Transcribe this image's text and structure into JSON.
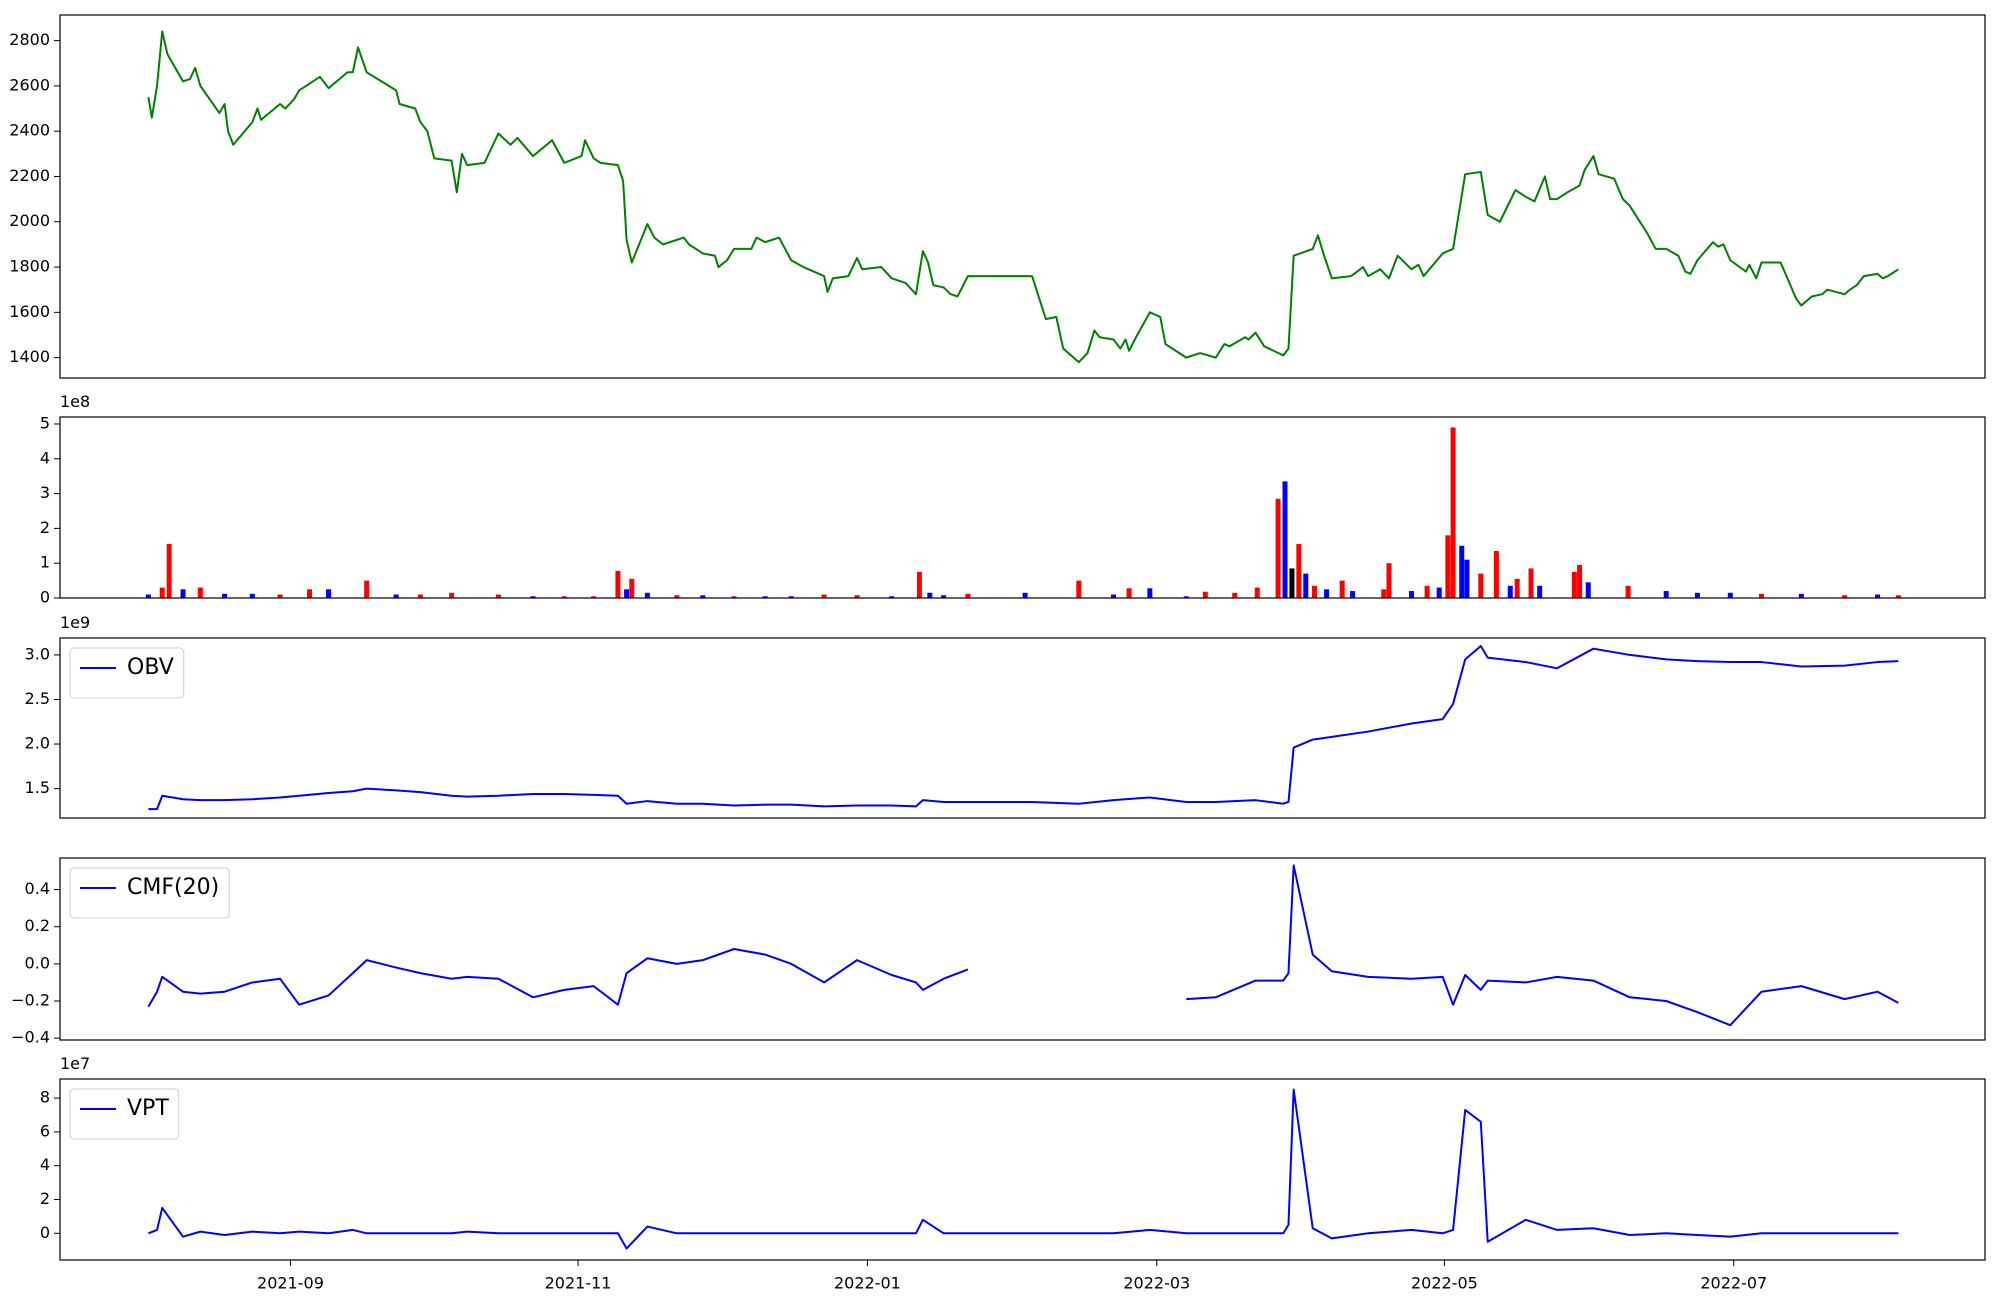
{
  "chart_data": [
    {
      "type": "line",
      "color": "#008000",
      "xlim": [
        2021.534,
        2022.645
      ],
      "ylim": [
        1310,
        2913
      ],
      "yticks": [
        1400,
        1600,
        1800,
        2000,
        2200,
        2400,
        2600,
        2800
      ],
      "x": [
        2021.585,
        2021.587,
        2021.59,
        2021.593,
        2021.596,
        2021.605,
        2021.609,
        2021.612,
        2021.615,
        2021.626,
        2021.629,
        2021.631,
        2021.634,
        2021.645,
        2021.648,
        2021.65,
        2021.661,
        2021.664,
        2021.669,
        2021.672,
        2021.684,
        2021.689,
        2021.7,
        2021.703,
        2021.706,
        2021.711,
        2021.728,
        2021.73,
        2021.739,
        2021.742,
        2021.746,
        2021.75,
        2021.76,
        2021.763,
        2021.766,
        2021.769,
        2021.779,
        2021.787,
        2021.794,
        2021.798,
        2021.807,
        2021.818,
        2021.825,
        2021.835,
        2021.837,
        2021.842,
        2021.846,
        2021.856,
        2021.859,
        2021.861,
        2021.864,
        2021.873,
        2021.877,
        2021.882,
        2021.89,
        2021.894,
        2021.897,
        2021.905,
        2021.912,
        2021.914,
        2021.919,
        2021.923,
        2021.933,
        2021.936,
        2021.941,
        2021.949,
        2021.956,
        2021.963,
        2021.975,
        2021.977,
        2021.98,
        2021.989,
        2021.994,
        2021.997,
        2022.008,
        2022.014,
        2022.022,
        2022.028,
        2022.032,
        2022.035,
        2022.038,
        2022.044,
        2022.048,
        2022.052,
        2022.058,
        2022.095,
        2022.103,
        2022.109,
        2022.113,
        2022.122,
        2022.127,
        2022.131,
        2022.134,
        2022.142,
        2022.146,
        2022.149,
        2022.151,
        2022.155,
        2022.163,
        2022.169,
        2022.172,
        2022.184,
        2022.192,
        2022.201,
        2022.206,
        2022.209,
        2022.218,
        2022.22,
        2022.224,
        2022.229,
        2022.24,
        2022.243,
        2022.246,
        2022.257,
        2022.26,
        2022.264,
        2022.268,
        2022.279,
        2022.281,
        2022.286,
        2022.289,
        2022.296,
        2022.301,
        2022.306,
        2022.314,
        2022.318,
        2022.321,
        2022.332,
        2022.338,
        2022.345,
        2022.354,
        2022.358,
        2022.365,
        2022.374,
        2022.38,
        2022.385,
        2022.391,
        2022.394,
        2022.398,
        2022.404,
        2022.411,
        2022.414,
        2022.419,
        2022.422,
        2022.431,
        2022.436,
        2022.44,
        2022.45,
        2022.455,
        2022.461,
        2022.468,
        2022.472,
        2022.475,
        2022.479,
        2022.488,
        2022.491,
        2022.494,
        2022.498,
        2022.507,
        2022.509,
        2022.513,
        2022.516,
        2022.527,
        2022.531,
        2022.536,
        2022.539,
        2022.545,
        2022.551,
        2022.554,
        2022.564,
        2022.567,
        2022.571,
        2022.575,
        2022.583,
        2022.586,
        2022.589,
        2022.595
      ],
      "values": [
        2550,
        2460,
        2600,
        2840,
        2740,
        2620,
        2630,
        2680,
        2600,
        2480,
        2520,
        2400,
        2340,
        2440,
        2500,
        2450,
        2520,
        2500,
        2540,
        2580,
        2640,
        2590,
        2660,
        2660,
        2770,
        2660,
        2580,
        2520,
        2500,
        2440,
        2400,
        2280,
        2270,
        2130,
        2300,
        2250,
        2260,
        2390,
        2340,
        2370,
        2290,
        2360,
        2260,
        2290,
        2360,
        2280,
        2260,
        2250,
        2180,
        1920,
        1820,
        1990,
        1930,
        1900,
        1920,
        1930,
        1900,
        1860,
        1850,
        1800,
        1830,
        1880,
        1880,
        1930,
        1910,
        1930,
        1830,
        1800,
        1760,
        1690,
        1750,
        1760,
        1840,
        1790,
        1800,
        1750,
        1730,
        1680,
        1870,
        1820,
        1720,
        1710,
        1680,
        1670,
        1760,
        1760,
        1570,
        1580,
        1440,
        1380,
        1420,
        1520,
        1490,
        1480,
        1440,
        1480,
        1430,
        1490,
        1600,
        1580,
        1460,
        1400,
        1420,
        1400,
        1460,
        1450,
        1490,
        1480,
        1510,
        1450,
        1410,
        1440,
        1850,
        1880,
        1940,
        1840,
        1750,
        1760,
        1770,
        1800,
        1760,
        1790,
        1750,
        1850,
        1790,
        1810,
        1760,
        1860,
        1880,
        2210,
        2220,
        2030,
        2000,
        2140,
        2110,
        2090,
        2200,
        2100,
        2100,
        2130,
        2160,
        2230,
        2290,
        2210,
        2190,
        2100,
        2070,
        1950,
        1880,
        1880,
        1850,
        1780,
        1770,
        1830,
        1910,
        1890,
        1900,
        1830,
        1780,
        1810,
        1750,
        1820,
        1820,
        1750,
        1660,
        1630,
        1670,
        1680,
        1700,
        1680,
        1700,
        1720,
        1760,
        1770,
        1750,
        1760,
        1790
      ]
    },
    {
      "type": "bar",
      "offset_text": "1e8",
      "xlim": [
        2021.534,
        2022.645
      ],
      "ylim": [
        0,
        5.2
      ],
      "yticks": [
        0,
        1,
        2,
        3,
        4,
        5
      ],
      "x": [
        2021.585,
        2021.593,
        2021.597,
        2021.605,
        2021.615,
        2021.629,
        2021.645,
        2021.661,
        2021.678,
        2021.689,
        2021.711,
        2021.728,
        2021.742,
        2021.76,
        2021.787,
        2021.807,
        2021.825,
        2021.842,
        2021.856,
        2021.861,
        2021.864,
        2021.873,
        2021.89,
        2021.905,
        2021.923,
        2021.941,
        2021.956,
        2021.975,
        2021.994,
        2022.014,
        2022.03,
        2022.036,
        2022.044,
        2022.058,
        2022.091,
        2022.122,
        2022.142,
        2022.151,
        2022.163,
        2022.184,
        2022.195,
        2022.212,
        2022.225,
        2022.237,
        2022.241,
        2022.245,
        2022.249,
        2022.253,
        2022.258,
        2022.265,
        2022.274,
        2022.28,
        2022.298,
        2022.301,
        2022.314,
        2022.323,
        2022.33,
        2022.335,
        2022.338,
        2022.343,
        2022.346,
        2022.354,
        2022.363,
        2022.371,
        2022.375,
        2022.383,
        2022.388,
        2022.408,
        2022.411,
        2022.416,
        2022.439,
        2022.461,
        2022.479,
        2022.498,
        2022.516,
        2022.539,
        2022.564,
        2022.583,
        2022.595
      ],
      "values": [
        0.1,
        0.3,
        1.55,
        0.25,
        0.3,
        0.12,
        0.12,
        0.1,
        0.25,
        0.25,
        0.5,
        0.1,
        0.1,
        0.15,
        0.1,
        0.05,
        0.05,
        0.05,
        0.78,
        0.25,
        0.55,
        0.15,
        0.08,
        0.08,
        0.05,
        0.05,
        0.05,
        0.1,
        0.08,
        0.05,
        0.75,
        0.15,
        0.08,
        0.12,
        0.15,
        0.5,
        0.1,
        0.28,
        0.28,
        0.05,
        0.18,
        0.15,
        0.3,
        2.85,
        3.35,
        0.85,
        1.55,
        0.7,
        0.35,
        0.25,
        0.5,
        0.2,
        0.25,
        1.0,
        0.2,
        0.35,
        0.3,
        1.8,
        4.9,
        1.5,
        1.1,
        0.7,
        1.35,
        0.35,
        0.55,
        0.85,
        0.35,
        0.75,
        0.95,
        0.45,
        0.35,
        0.2,
        0.15,
        0.15,
        0.12,
        0.12,
        0.08,
        0.1,
        0.08
      ],
      "colors": [
        "#0000ff",
        "#ff0000",
        "#ff0000",
        "#0000ff",
        "#ff0000",
        "#0000ff",
        "#0000ff",
        "#ff0000",
        "#ff0000",
        "#0000ff",
        "#ff0000",
        "#0000ff",
        "#ff0000",
        "#ff0000",
        "#ff0000",
        "#0000ff",
        "#ff0000",
        "#ff0000",
        "#ff0000",
        "#0000ff",
        "#ff0000",
        "#0000ff",
        "#ff0000",
        "#0000ff",
        "#ff0000",
        "#0000ff",
        "#0000ff",
        "#ff0000",
        "#ff0000",
        "#0000ff",
        "#ff0000",
        "#0000ff",
        "#0000ff",
        "#ff0000",
        "#0000ff",
        "#ff0000",
        "#0000ff",
        "#ff0000",
        "#0000ff",
        "#0000ff",
        "#ff0000",
        "#ff0000",
        "#ff0000",
        "#ff0000",
        "#0000ff",
        "#000000",
        "#ff0000",
        "#0000ff",
        "#ff0000",
        "#0000ff",
        "#ff0000",
        "#0000ff",
        "#ff0000",
        "#ff0000",
        "#0000ff",
        "#ff0000",
        "#0000ff",
        "#ff0000",
        "#ff0000",
        "#0000ff",
        "#0000ff",
        "#ff0000",
        "#ff0000",
        "#0000ff",
        "#ff0000",
        "#ff0000",
        "#0000ff",
        "#ff0000",
        "#ff0000",
        "#0000ff",
        "#ff0000",
        "#0000ff",
        "#0000ff",
        "#0000ff",
        "#ff0000",
        "#0000ff",
        "#ff0000",
        "#0000ff",
        "#ff0000"
      ]
    },
    {
      "type": "line",
      "offset_text": "1e9",
      "legend": "upper left",
      "xlim": [
        2021.534,
        2022.645
      ],
      "ylim": [
        1.17,
        3.19
      ],
      "yticks": [
        1.5,
        {
          "value": 2,
          "label": "2.0"
        },
        2.5,
        {
          "value": 3,
          "label": "3.0"
        }
      ],
      "x": [
        2021.585,
        2021.59,
        2021.593,
        2021.605,
        2021.615,
        2021.629,
        2021.645,
        2021.661,
        2021.672,
        2021.689,
        2021.703,
        2021.711,
        2021.728,
        2021.742,
        2021.76,
        2021.769,
        2021.787,
        2021.807,
        2021.825,
        2021.842,
        2021.856,
        2021.861,
        2021.873,
        2021.89,
        2021.905,
        2021.923,
        2021.941,
        2021.956,
        2021.975,
        2021.994,
        2022.014,
        2022.028,
        2022.032,
        2022.044,
        2022.058,
        2022.095,
        2022.122,
        2022.142,
        2022.163,
        2022.184,
        2022.201,
        2022.224,
        2022.24,
        2022.243,
        2022.246,
        2022.257,
        2022.268,
        2022.289,
        2022.314,
        2022.332,
        2022.338,
        2022.345,
        2022.354,
        2022.358,
        2022.38,
        2022.398,
        2022.419,
        2022.44,
        2022.461,
        2022.479,
        2022.498,
        2022.516,
        2022.539,
        2022.564,
        2022.583,
        2022.595
      ],
      "series": [
        {
          "name": "OBV",
          "color": "#0000ff",
          "values": [
            1.27,
            1.27,
            1.42,
            1.38,
            1.37,
            1.37,
            1.38,
            1.4,
            1.42,
            1.45,
            1.47,
            1.5,
            1.48,
            1.46,
            1.42,
            1.41,
            1.42,
            1.44,
            1.44,
            1.43,
            1.42,
            1.33,
            1.36,
            1.33,
            1.33,
            1.31,
            1.32,
            1.32,
            1.3,
            1.31,
            1.31,
            1.3,
            1.37,
            1.35,
            1.35,
            1.35,
            1.33,
            1.37,
            1.4,
            1.35,
            1.35,
            1.37,
            1.33,
            1.35,
            1.96,
            2.05,
            2.08,
            2.14,
            2.23,
            2.28,
            2.45,
            2.95,
            3.1,
            2.97,
            2.92,
            2.85,
            3.07,
            3.0,
            2.95,
            2.93,
            2.92,
            2.92,
            2.87,
            2.88,
            2.92,
            2.93
          ]
        }
      ]
    },
    {
      "type": "line",
      "legend": "upper left",
      "xlim": [
        2021.534,
        2022.645
      ],
      "ylim": [
        -0.41,
        0.57
      ],
      "yticks": [
        {
          "value": -0.4,
          "label": "−0.4"
        },
        {
          "value": -0.2,
          "label": "−0.2"
        },
        {
          "value": 0,
          "label": "0.0"
        },
        0.2,
        0.4
      ],
      "x": [
        2021.585,
        2021.59,
        2021.593,
        2021.605,
        2021.615,
        2021.629,
        2021.645,
        2021.661,
        2021.672,
        2021.689,
        2021.703,
        2021.711,
        2021.728,
        2021.742,
        2021.76,
        2021.769,
        2021.787,
        2021.807,
        2021.825,
        2021.842,
        2021.856,
        2021.861,
        2021.873,
        2021.89,
        2021.905,
        2021.923,
        2021.941,
        2021.956,
        2021.975,
        2021.994,
        2022.014,
        2022.028,
        2022.032,
        2022.044,
        2022.058,
        2022.095,
        2022.122,
        2022.142,
        2022.163,
        2022.184,
        2022.201,
        2022.224,
        2022.24,
        2022.243,
        2022.246,
        2022.257,
        2022.268,
        2022.289,
        2022.314,
        2022.332,
        2022.338,
        2022.345,
        2022.354,
        2022.358,
        2022.38,
        2022.398,
        2022.419,
        2022.44,
        2022.461,
        2022.479,
        2022.498,
        2022.516,
        2022.539,
        2022.564,
        2022.583,
        2022.595
      ],
      "series": [
        {
          "name": "CMF(20)",
          "color": "#0000ff",
          "values": [
            -0.23,
            -0.15,
            -0.07,
            -0.15,
            -0.16,
            -0.15,
            -0.1,
            -0.08,
            -0.22,
            -0.17,
            -0.05,
            0.02,
            -0.02,
            -0.05,
            -0.08,
            -0.07,
            -0.08,
            -0.18,
            -0.14,
            -0.12,
            -0.22,
            -0.05,
            0.03,
            0,
            0.02,
            0.08,
            0.05,
            0,
            -0.1,
            0.02,
            -0.06,
            -0.1,
            -0.14,
            -0.08,
            -0.03,
            null,
            null,
            null,
            null,
            -0.19,
            -0.18,
            -0.09,
            -0.09,
            -0.05,
            0.53,
            0.05,
            -0.04,
            -0.07,
            -0.08,
            -0.07,
            -0.22,
            -0.06,
            -0.14,
            -0.09,
            -0.1,
            -0.07,
            -0.09,
            -0.18,
            -0.2,
            -0.26,
            -0.33,
            -0.15,
            -0.12,
            -0.19,
            -0.15,
            -0.21
          ]
        }
      ]
    },
    {
      "type": "line",
      "offset_text": "1e7",
      "legend": "upper left",
      "xlim": [
        2021.534,
        2022.645
      ],
      "ylim": [
        -1.58,
        9.13
      ],
      "yticks": [
        0,
        2,
        4,
        6,
        8
      ],
      "xticks": [
        {
          "value": 2021.667,
          "label": "2021-09"
        },
        {
          "value": 2021.833,
          "label": "2021-11"
        },
        {
          "value": 2022.0,
          "label": "2022-01"
        },
        {
          "value": 2022.167,
          "label": "2022-03"
        },
        {
          "value": 2022.333,
          "label": "2022-05"
        },
        {
          "value": 2022.5,
          "label": "2022-07"
        }
      ],
      "x": [
        2021.585,
        2021.59,
        2021.593,
        2021.605,
        2021.615,
        2021.629,
        2021.645,
        2021.661,
        2021.672,
        2021.689,
        2021.703,
        2021.711,
        2021.728,
        2021.742,
        2021.76,
        2021.769,
        2021.787,
        2021.807,
        2021.825,
        2021.842,
        2021.856,
        2021.861,
        2021.873,
        2021.89,
        2021.905,
        2021.923,
        2021.941,
        2021.956,
        2021.975,
        2021.994,
        2022.014,
        2022.028,
        2022.032,
        2022.044,
        2022.058,
        2022.095,
        2022.122,
        2022.142,
        2022.163,
        2022.184,
        2022.201,
        2022.224,
        2022.24,
        2022.243,
        2022.246,
        2022.257,
        2022.268,
        2022.289,
        2022.314,
        2022.332,
        2022.338,
        2022.345,
        2022.354,
        2022.358,
        2022.38,
        2022.398,
        2022.419,
        2022.44,
        2022.461,
        2022.479,
        2022.498,
        2022.516,
        2022.539,
        2022.564,
        2022.583,
        2022.595
      ],
      "series": [
        {
          "name": "VPT",
          "color": "#0000ff",
          "values": [
            0,
            0.2,
            1.5,
            -0.2,
            0.1,
            -0.1,
            0.1,
            0,
            0.1,
            0,
            0.2,
            0,
            0,
            0,
            0,
            0.1,
            0,
            0,
            0,
            0,
            0,
            -0.9,
            0.4,
            0,
            0,
            0,
            0,
            0,
            0,
            0,
            0,
            0,
            0.8,
            0,
            0,
            0,
            0,
            0,
            0.2,
            0,
            0,
            0,
            0,
            0.5,
            8.5,
            0.3,
            -0.3,
            0,
            0.2,
            0,
            0.2,
            7.3,
            6.6,
            -0.5,
            0.8,
            0.2,
            0.3,
            -0.1,
            0,
            -0.1,
            -0.2,
            0,
            0,
            0,
            0,
            0
          ]
        }
      ]
    }
  ]
}
